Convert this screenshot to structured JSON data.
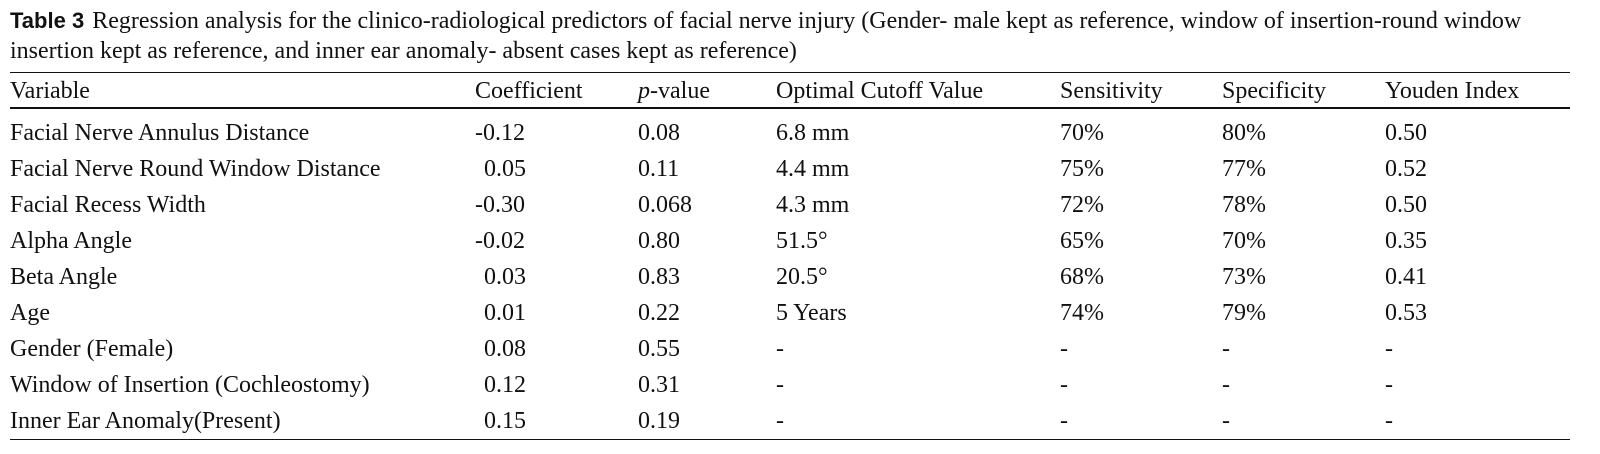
{
  "caption": {
    "label": "Table 3",
    "text": "Regression analysis for the clinico-radiological predictors of facial nerve injury (Gender- male kept as reference, window of insertion-round window insertion kept as reference, and inner ear anomaly- absent cases kept as reference)"
  },
  "table": {
    "headers": {
      "variable": "Variable",
      "coefficient": "Coefficient",
      "p_italic": "p",
      "p_suffix": "-value",
      "cutoff": "Optimal Cutoff Value",
      "sensitivity": "Sensitivity",
      "specificity": "Specificity",
      "youden": "Youden Index"
    },
    "rows": [
      {
        "variable": "Facial Nerve Annulus Distance",
        "coefficient": "-0.12",
        "p_value": "0.08",
        "cutoff": "6.8 mm",
        "sensitivity": "70%",
        "specificity": "80%",
        "youden": "0.50"
      },
      {
        "variable": "Facial Nerve Round Window Distance",
        "coefficient": "0.05",
        "p_value": "0.11",
        "cutoff": "4.4 mm",
        "sensitivity": "75%",
        "specificity": "77%",
        "youden": "0.52"
      },
      {
        "variable": "Facial Recess Width",
        "coefficient": "-0.30",
        "p_value": "0.068",
        "cutoff": "4.3 mm",
        "sensitivity": "72%",
        "specificity": "78%",
        "youden": "0.50"
      },
      {
        "variable": "Alpha Angle",
        "coefficient": "-0.02",
        "p_value": "0.80",
        "cutoff": "51.5°",
        "sensitivity": "65%",
        "specificity": "70%",
        "youden": "0.35"
      },
      {
        "variable": "Beta Angle",
        "coefficient": "0.03",
        "p_value": "0.83",
        "cutoff": "20.5°",
        "sensitivity": "68%",
        "specificity": "73%",
        "youden": "0.41"
      },
      {
        "variable": "Age",
        "coefficient": "0.01",
        "p_value": "0.22",
        "cutoff": "5 Years",
        "sensitivity": "74%",
        "specificity": "79%",
        "youden": "0.53"
      },
      {
        "variable": "Gender (Female)",
        "coefficient": "0.08",
        "p_value": "0.55",
        "cutoff": "-",
        "sensitivity": "-",
        "specificity": "-",
        "youden": "-"
      },
      {
        "variable": "Window of Insertion (Cochleostomy)",
        "coefficient": "0.12",
        "p_value": "0.31",
        "cutoff": "-",
        "sensitivity": "-",
        "specificity": "-",
        "youden": "-"
      },
      {
        "variable": "Inner Ear Anomaly(Present)",
        "coefficient": "0.15",
        "p_value": "0.19",
        "cutoff": "-",
        "sensitivity": "-",
        "specificity": "-",
        "youden": "-"
      }
    ]
  }
}
